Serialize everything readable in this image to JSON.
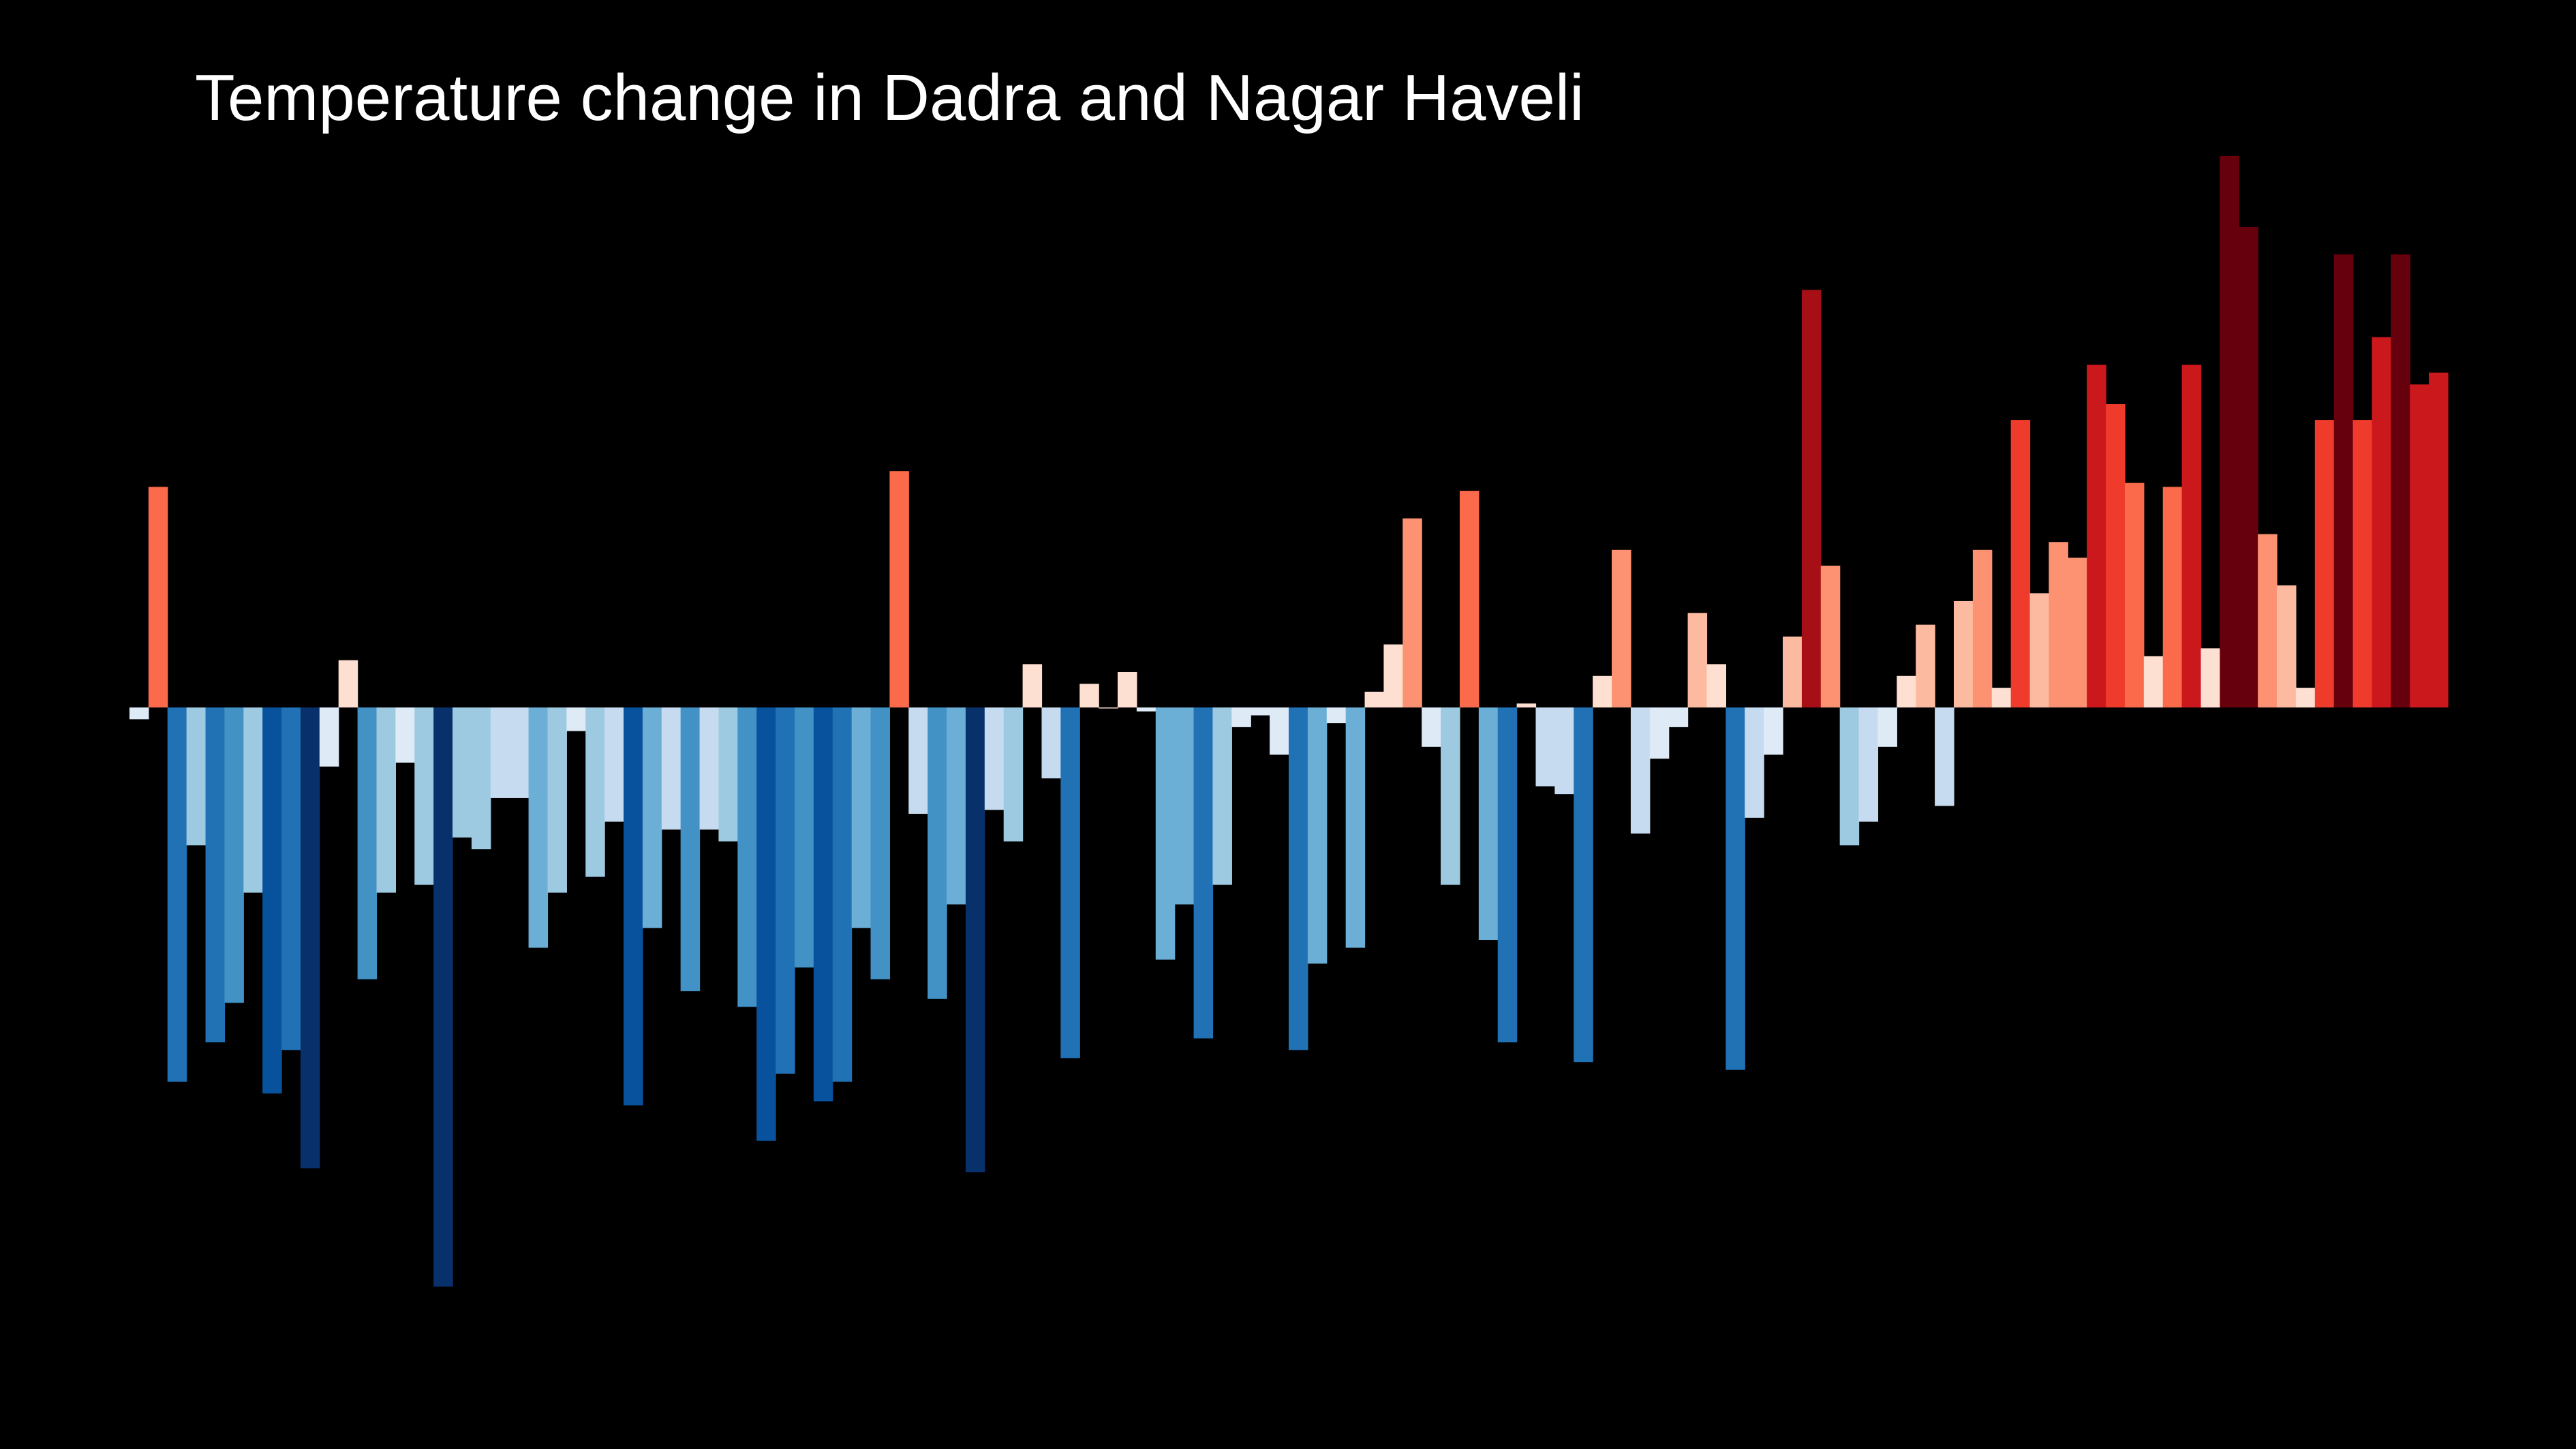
{
  "chart_data": {
    "type": "bar",
    "title": "Temperature change in Dadra and Nagar Haveli",
    "xlabel": "",
    "ylabel": "",
    "grid": false,
    "legend": "none",
    "colors": {
      "background": "#000000",
      "title": "#ffffff",
      "palette": [
        "#08306b",
        "#08519c",
        "#2171b5",
        "#4292c6",
        "#6baed6",
        "#9ecae1",
        "#c6dbef",
        "#deebf7",
        "#fee0d2",
        "#fcbba1",
        "#fc9272",
        "#fb6a4a",
        "#ef3b2c",
        "#cb181d",
        "#a50f15",
        "#67000d"
      ]
    },
    "ylim": [
      -1.6,
      1.6
    ],
    "values": [
      -0.03,
      0.56,
      -0.95,
      -0.35,
      -0.85,
      -0.75,
      -0.47,
      -0.98,
      -0.87,
      -1.17,
      -0.15,
      0.12,
      -0.69,
      -0.47,
      -0.14,
      -0.45,
      -1.47,
      -0.33,
      -0.36,
      -0.23,
      -0.23,
      -0.61,
      -0.47,
      -0.06,
      -0.43,
      -0.29,
      -1.01,
      -0.56,
      -0.31,
      -0.72,
      -0.31,
      -0.34,
      -0.76,
      -1.1,
      -0.93,
      -0.66,
      -1.0,
      -0.95,
      -0.56,
      -0.69,
      0.6,
      -0.27,
      -0.74,
      -0.5,
      -1.18,
      -0.26,
      -0.34,
      0.11,
      -0.18,
      -0.89,
      0.06,
      0.0,
      0.09,
      -0.01,
      -0.64,
      -0.5,
      -0.84,
      -0.45,
      -0.05,
      -0.02,
      -0.12,
      -0.87,
      -0.65,
      -0.04,
      -0.61,
      0.04,
      0.16,
      0.48,
      -0.1,
      -0.45,
      0.55,
      -0.59,
      -0.85,
      0.01,
      -0.2,
      -0.22,
      -0.9,
      0.08,
      0.4,
      -0.32,
      -0.13,
      -0.05,
      0.24,
      0.11,
      -0.92,
      -0.28,
      -0.12,
      0.18,
      1.06,
      0.36,
      -0.35,
      -0.29,
      -0.1,
      0.08,
      0.21,
      -0.25,
      0.27,
      0.4,
      0.05,
      0.73,
      0.29,
      0.42,
      0.38,
      0.87,
      0.77,
      0.57,
      0.13,
      0.56,
      0.87,
      0.15,
      1.4,
      1.22,
      0.44,
      0.31,
      0.05,
      0.73,
      1.15,
      0.73,
      0.94,
      1.15,
      0.82,
      0.85
    ]
  }
}
